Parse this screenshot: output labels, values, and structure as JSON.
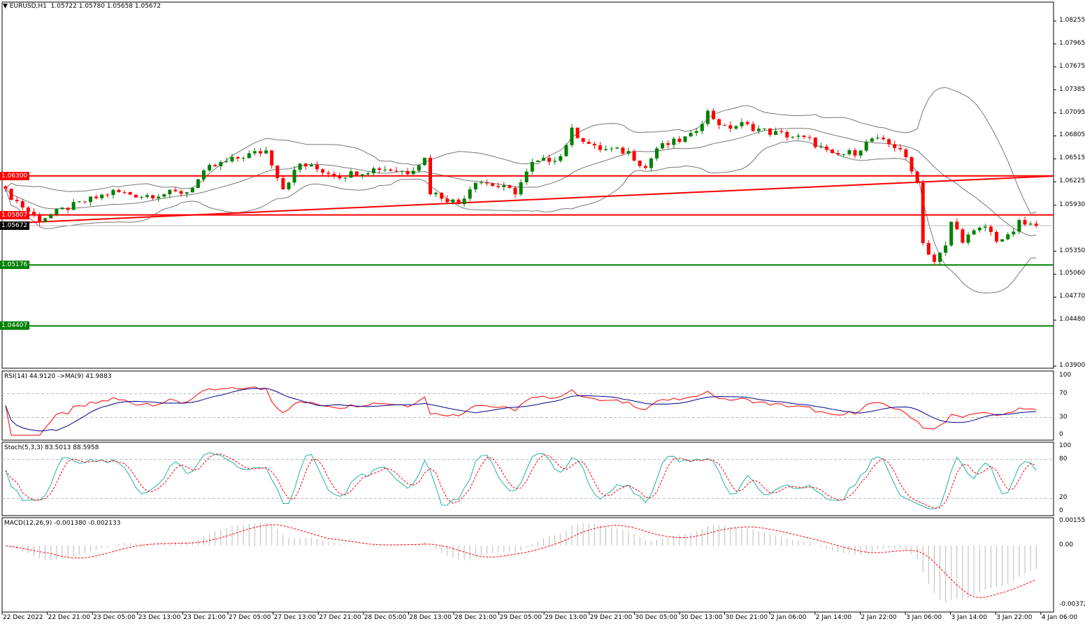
{
  "header": {
    "symbol": "EURUSD,H1",
    "ohlc": "1.05722 1.05780 1.05658 1.05672"
  },
  "indicators": {
    "rsi": "RSI(14) 44.9120  ->MA(9) 41.9883",
    "stoch": "Stoch(5,3,3) 83.5013 88.5958",
    "macd": "MACD(12,26,9) -0.001380 -0.002133"
  },
  "colors": {
    "bull": "#008000",
    "bear": "#ff0000",
    "resistance": "#ff0000",
    "support": "#008000",
    "current": "#000000"
  },
  "chart_data": {
    "type": "candlestick",
    "title": "EURUSD,H1",
    "ylim": [
      1.039,
      1.084
    ],
    "price_ticks": [
      "1.08255",
      "1.07965",
      "1.07675",
      "1.07385",
      "1.07095",
      "1.06805",
      "1.06515",
      "1.06225",
      "1.05930",
      "1.05350",
      "1.05060",
      "1.04770",
      "1.04480",
      "1.03900"
    ],
    "price_tick_values": [
      1.08255,
      1.07965,
      1.07675,
      1.07385,
      1.07095,
      1.06805,
      1.06515,
      1.06225,
      1.0593,
      1.0535,
      1.0506,
      1.0477,
      1.0448,
      1.039
    ],
    "time_labels": [
      "22 Dec 2022",
      "22 Dec 21:00",
      "23 Dec 05:00",
      "23 Dec 13:00",
      "23 Dec 21:00",
      "27 Dec 05:00",
      "27 Dec 13:00",
      "27 Dec 21:00",
      "28 Dec 05:00",
      "28 Dec 13:00",
      "28 Dec 21:00",
      "29 Dec 05:00",
      "29 Dec 13:00",
      "29 Dec 21:00",
      "30 Dec 05:00",
      "30 Dec 13:00",
      "30 Dec 21:00",
      "2 Jan 06:00",
      "2 Jan 14:00",
      "2 Jan 22:00",
      "3 Jan 06:00",
      "3 Jan 14:00",
      "3 Jan 22:00",
      "4 Jan 06:00"
    ],
    "bars": 183,
    "close_anchors": [
      [
        0,
        1.061
      ],
      [
        4,
        1.0585
      ],
      [
        6,
        1.0575
      ],
      [
        11,
        1.059
      ],
      [
        19,
        1.061
      ],
      [
        24,
        1.0605
      ],
      [
        32,
        1.061
      ],
      [
        36,
        1.064
      ],
      [
        42,
        1.0655
      ],
      [
        46,
        1.0662
      ],
      [
        49,
        1.0615
      ],
      [
        52,
        1.0645
      ],
      [
        59,
        1.063
      ],
      [
        66,
        1.064
      ],
      [
        71,
        1.0635
      ],
      [
        74,
        1.0652
      ],
      [
        75,
        1.061
      ],
      [
        80,
        1.0595
      ],
      [
        83,
        1.0625
      ],
      [
        90,
        1.061
      ],
      [
        93,
        1.0645
      ],
      [
        98,
        1.0655
      ],
      [
        100,
        1.0687
      ],
      [
        104,
        1.0665
      ],
      [
        110,
        1.066
      ],
      [
        113,
        1.064
      ],
      [
        115,
        1.0665
      ],
      [
        121,
        1.068
      ],
      [
        124,
        1.071
      ],
      [
        127,
        1.069
      ],
      [
        130,
        1.0695
      ],
      [
        135,
        1.0685
      ],
      [
        139,
        1.068
      ],
      [
        142,
        1.0675
      ],
      [
        146,
        1.0655
      ],
      [
        150,
        1.066
      ],
      [
        153,
        1.0677
      ],
      [
        158,
        1.0665
      ],
      [
        160,
        1.0635
      ],
      [
        161,
        1.0625
      ],
      [
        162,
        1.0545
      ],
      [
        164,
        1.0522
      ],
      [
        166,
        1.054
      ],
      [
        167,
        1.0572
      ],
      [
        169,
        1.055
      ],
      [
        173,
        1.0566
      ],
      [
        175,
        1.055
      ],
      [
        177,
        1.0552
      ],
      [
        179,
        1.057
      ],
      [
        182,
        1.0567
      ]
    ],
    "levels": [
      {
        "name": "resistance-1",
        "price": 1.063,
        "label": "1.06300",
        "color": "#ff0000"
      },
      {
        "name": "resistance-2",
        "price": 1.05807,
        "label": "1.05807",
        "color": "#ff0000"
      },
      {
        "name": "support-1",
        "price": 1.05176,
        "label": "1.05176",
        "color": "#008000"
      },
      {
        "name": "support-2",
        "price": 1.04407,
        "label": "1.04407",
        "color": "#008000"
      }
    ],
    "current_price": {
      "price": 1.05672,
      "label": "1.05672"
    },
    "trendline": {
      "from": [
        0,
        1.05698
      ],
      "to": [
        185,
        1.06298
      ]
    },
    "rsi_ticks": [
      "100",
      "70",
      "30",
      "0"
    ],
    "stoch_ticks": [
      "100",
      "80",
      "20",
      "0"
    ],
    "macd_ticks": [
      "0.001556",
      "0.00",
      "-0.003723"
    ]
  }
}
